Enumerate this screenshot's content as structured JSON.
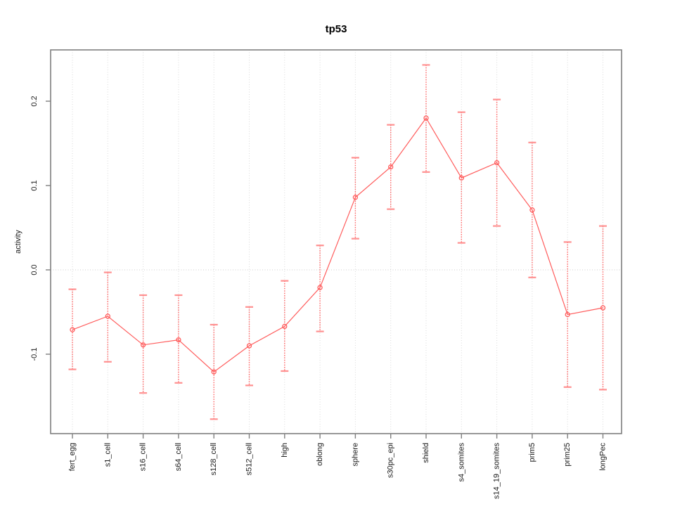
{
  "chart_data": {
    "type": "line",
    "title": "tp53",
    "xlabel": "",
    "ylabel": "activity",
    "categories": [
      "fert_egg",
      "s1_cell",
      "s16_cell",
      "s64_cell",
      "s128_cell",
      "s512_cell",
      "high",
      "oblong",
      "sphere",
      "s30pc_epi",
      "shield",
      "s4_somites",
      "s14_19_somites",
      "prim5",
      "prim25",
      "longPec"
    ],
    "series": [
      {
        "name": "activity",
        "values": [
          -0.071,
          -0.055,
          -0.089,
          -0.083,
          -0.121,
          -0.09,
          -0.067,
          -0.021,
          0.086,
          0.122,
          0.18,
          0.109,
          0.127,
          0.071,
          -0.053,
          -0.045
        ],
        "error_high": [
          -0.023,
          -0.003,
          -0.03,
          -0.03,
          -0.065,
          -0.044,
          -0.013,
          0.029,
          0.133,
          0.172,
          0.243,
          0.187,
          0.202,
          0.151,
          0.033,
          0.052
        ],
        "error_low": [
          -0.118,
          -0.109,
          -0.146,
          -0.134,
          -0.177,
          -0.137,
          -0.12,
          -0.073,
          0.037,
          0.072,
          0.116,
          0.032,
          0.052,
          -0.009,
          -0.139,
          -0.142
        ]
      }
    ],
    "ytick_values": [
      -0.1,
      0.0,
      0.1,
      0.2
    ],
    "ytick_labels": [
      "-0.1",
      "0.0",
      "0.1",
      "0.2"
    ],
    "ylim": [
      -0.194,
      0.261
    ],
    "refline_y": 0.0,
    "grid": "vertical dotted gridline at each category; dotted horizontal line at y=0",
    "legend": "none",
    "marker": "open-circle",
    "colors": {
      "line": "#ff5c5c",
      "marker": "#ff5c5c",
      "error_bar": "#ff6a6a",
      "error_cap": "#ff9090",
      "grid": "#dadada",
      "zero_line": "#cccccc",
      "axis": "#7f7f7f",
      "text": "#1a1a1a",
      "title": "#000000",
      "background": "#ffffff"
    }
  }
}
